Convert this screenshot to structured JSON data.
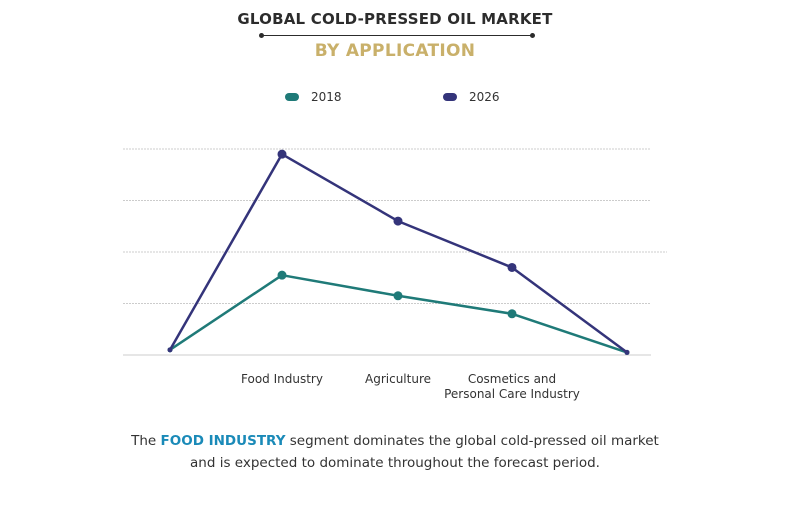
{
  "header": {
    "title": "GLOBAL COLD-PRESSED OIL MARKET",
    "subtitle": "BY APPLICATION"
  },
  "caption": {
    "prefix": "The ",
    "highlight": "FOOD INDUSTRY",
    "line1_rest": " segment dominates the global cold-pressed oil market",
    "line2": "and is expected to dominate throughout the forecast period."
  },
  "colors": {
    "series_2018": "#1f7a78",
    "series_2026": "#34347a",
    "title": "#2c2c2c",
    "subtitle": "#c9b06a",
    "highlight": "#1a8ab8",
    "grid": "#cccccc"
  },
  "chart_data": {
    "type": "line",
    "categories": [
      "",
      "Food Industry",
      "Agriculture",
      "Cosmetics and\nPersonal Care Industry",
      ""
    ],
    "series": [
      {
        "name": "2018",
        "color": "#1f7a78",
        "values": [
          0.1,
          1.55,
          1.15,
          0.8,
          0.05
        ]
      },
      {
        "name": "2026",
        "color": "#34347a",
        "values": [
          0.1,
          3.9,
          2.6,
          1.7,
          0.05
        ]
      }
    ],
    "ylim": [
      0,
      4
    ],
    "grid": true,
    "legend_position": "top-center",
    "title": "",
    "xlabel": "",
    "ylabel": ""
  }
}
